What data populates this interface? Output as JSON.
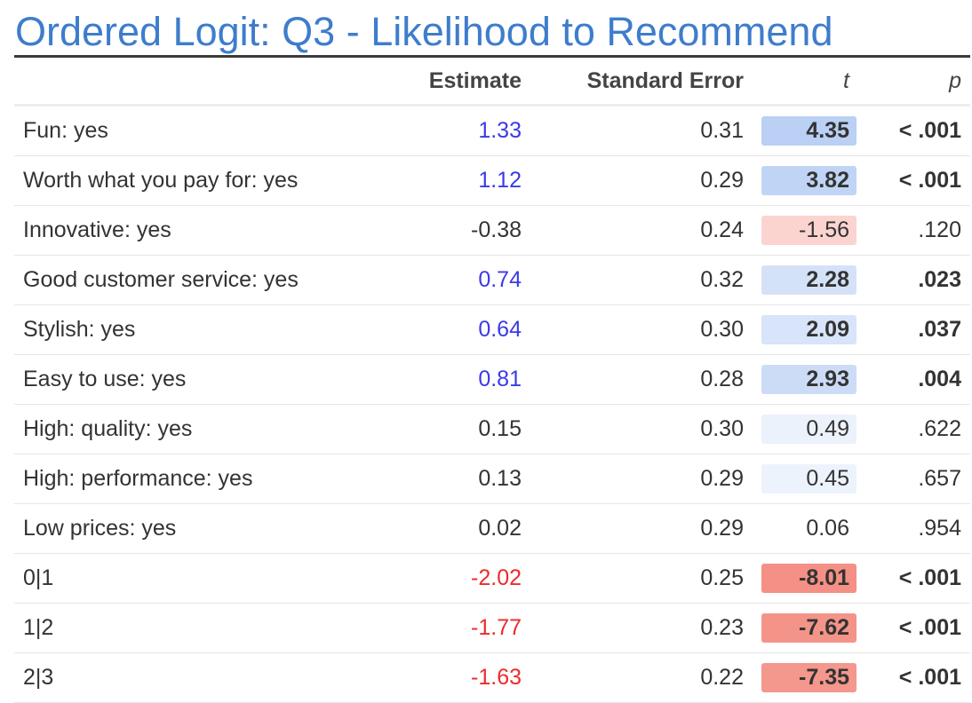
{
  "title": "Ordered Logit: Q3 - Likelihood to Recommend",
  "columns": [
    "Estimate",
    "Standard Error",
    "t",
    "p"
  ],
  "colors": {
    "title": "#3e7dcc",
    "positive_estimate": "#3a3ae8",
    "negative_estimate": "#ee2a2a",
    "neutral_estimate": "#333333"
  },
  "chart_data": {
    "type": "table",
    "title": "Ordered Logit: Q3 - Likelihood to Recommend",
    "columns": [
      "Estimate",
      "Standard Error",
      "t",
      "p"
    ],
    "rows": [
      {
        "label": "Fun: yes",
        "estimate": "1.33",
        "se": "0.31",
        "t": "4.35",
        "p": "< .001",
        "sig": true
      },
      {
        "label": "Worth what you pay for: yes",
        "estimate": "1.12",
        "se": "0.29",
        "t": "3.82",
        "p": "< .001",
        "sig": true
      },
      {
        "label": "Innovative: yes",
        "estimate": "-0.38",
        "se": "0.24",
        "t": "-1.56",
        "p": ".120",
        "sig": false
      },
      {
        "label": "Good customer service: yes",
        "estimate": "0.74",
        "se": "0.32",
        "t": "2.28",
        "p": ".023",
        "sig": true
      },
      {
        "label": "Stylish: yes",
        "estimate": "0.64",
        "se": "0.30",
        "t": "2.09",
        "p": ".037",
        "sig": true
      },
      {
        "label": "Easy to use: yes",
        "estimate": "0.81",
        "se": "0.28",
        "t": "2.93",
        "p": ".004",
        "sig": true
      },
      {
        "label": "High: quality: yes",
        "estimate": "0.15",
        "se": "0.30",
        "t": "0.49",
        "p": ".622",
        "sig": false
      },
      {
        "label": "High: performance: yes",
        "estimate": "0.13",
        "se": "0.29",
        "t": "0.45",
        "p": ".657",
        "sig": false
      },
      {
        "label": "Low prices: yes",
        "estimate": "0.02",
        "se": "0.29",
        "t": "0.06",
        "p": ".954",
        "sig": false
      },
      {
        "label": "0|1",
        "estimate": "-2.02",
        "se": "0.25",
        "t": "-8.01",
        "p": "< .001",
        "sig": true
      },
      {
        "label": "1|2",
        "estimate": "-1.77",
        "se": "0.23",
        "t": "-7.62",
        "p": "< .001",
        "sig": true
      },
      {
        "label": "2|3",
        "estimate": "-1.63",
        "se": "0.22",
        "t": "-7.35",
        "p": "< .001",
        "sig": true
      }
    ]
  }
}
